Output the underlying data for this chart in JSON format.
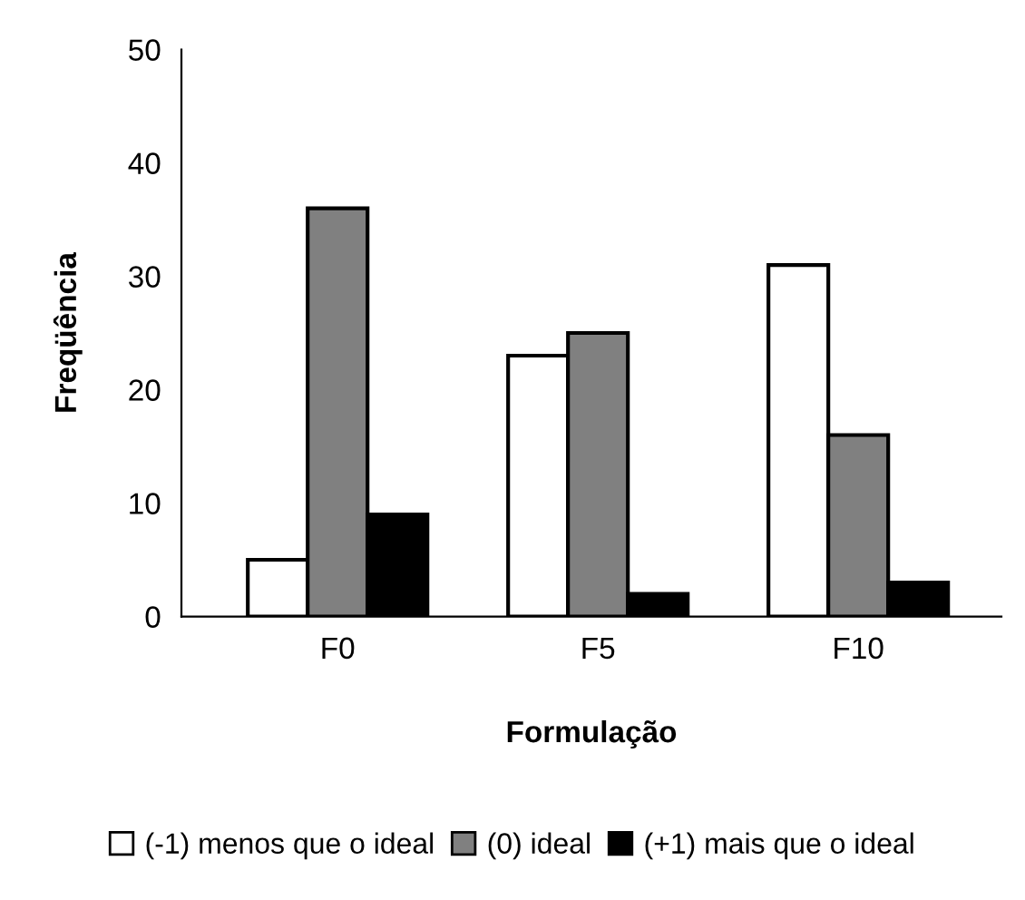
{
  "chart_data": {
    "type": "bar",
    "xlabel": "Formulação",
    "ylabel": "Freqüência",
    "categories": [
      "F0",
      "F5",
      "F10"
    ],
    "series": [
      {
        "name": "(-1) menos que o ideal",
        "color": "#ffffff",
        "values": [
          5,
          23,
          31
        ]
      },
      {
        "name": "(0) ideal",
        "color": "#808080",
        "values": [
          36,
          25,
          16
        ]
      },
      {
        "name": "(+1) mais que o ideal",
        "color": "#000000",
        "values": [
          9,
          2,
          3
        ]
      }
    ],
    "ylim": [
      0,
      50
    ],
    "yticks": [
      0,
      10,
      20,
      30,
      40,
      50
    ],
    "grid": false,
    "legend": "bottom"
  }
}
